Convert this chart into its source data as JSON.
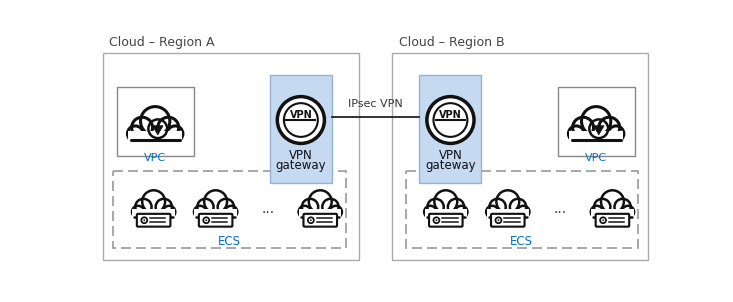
{
  "bg_color": "#ffffff",
  "region_a_label": "Cloud – Region A",
  "region_b_label": "Cloud – Region B",
  "region_border_color": "#bbbbbb",
  "vpn_box_color": "#c5d9f1",
  "vpn_box_edge_color": "#95b3d7",
  "ipsec_label": "IPsec VPN",
  "vpn_label_line1": "VPN",
  "vpn_label_line2": "gateway",
  "vpc_label": "VPC",
  "ecs_label": "ECS",
  "label_color": "#333333",
  "ecs_label_color": "#0070c0",
  "vpc_label_color": "#0070c0",
  "line_color": "#333333",
  "ecs_border_color": "#888888",
  "cloud_lw": 2.2,
  "vpn_circle_outer_lw": 2.2,
  "vpn_circle_inner_lw": 1.5
}
